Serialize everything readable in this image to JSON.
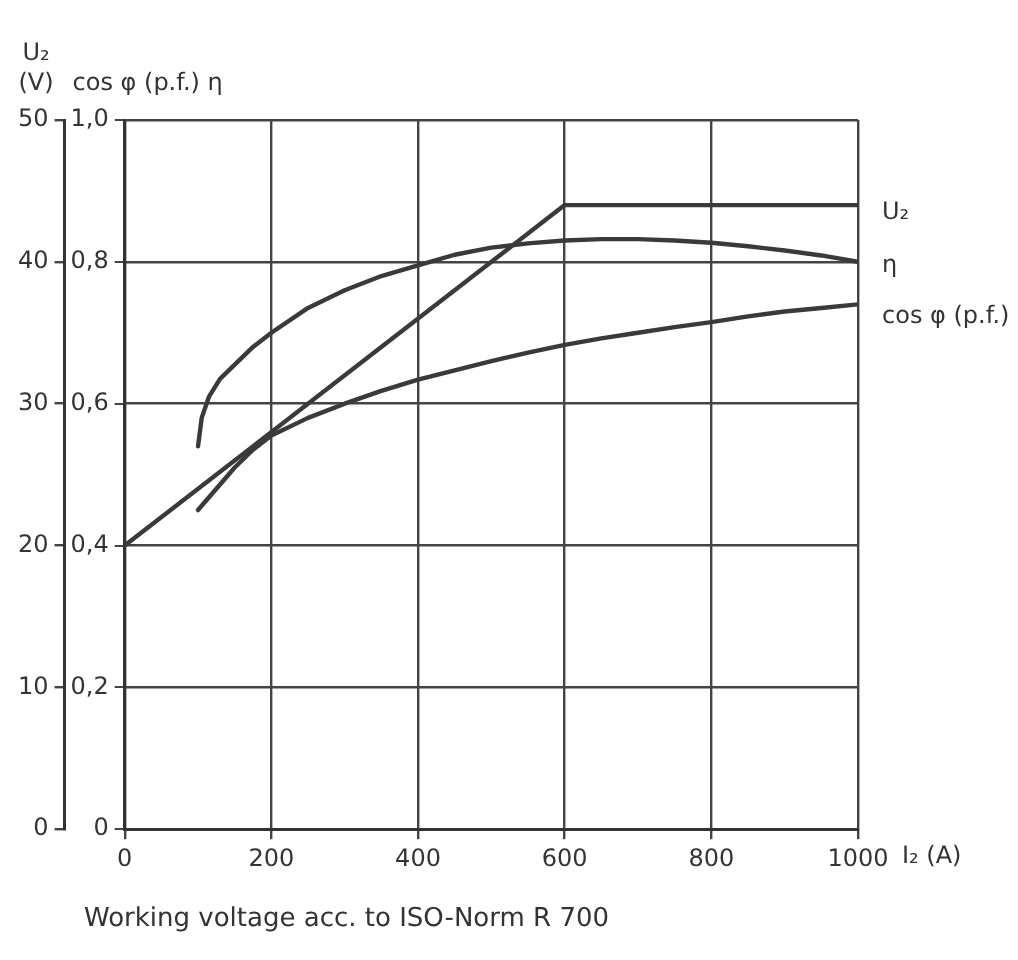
{
  "chart_data": {
    "type": "line",
    "xlabel": "I₂ (A)",
    "ylabel": "U₂ (V)",
    "y2label": "cos φ (p.f.) η",
    "xlim": [
      0,
      1000
    ],
    "xticks": [
      0,
      200,
      400,
      600,
      800,
      1000
    ],
    "ylim": [
      0,
      50
    ],
    "yticks": [
      0,
      10,
      20,
      30,
      40,
      50
    ],
    "y2lim": [
      0,
      1
    ],
    "y2ticks": [
      0,
      {
        "value": 0.2,
        "label": "0,2"
      },
      {
        "value": 0.4,
        "label": "0,4"
      },
      {
        "value": 0.6,
        "label": "0,6"
      },
      {
        "value": 0.8,
        "label": "0,8"
      },
      {
        "value": 1,
        "label": "1,0"
      }
    ],
    "grid": true,
    "legend": false,
    "marker": "none",
    "line_style": "solid",
    "series": [
      {
        "name": "U₂",
        "color": "#3a3a3a",
        "x": [
          0,
          600,
          1000
        ],
        "values": [
          20,
          44,
          44
        ]
      },
      {
        "name": "η",
        "color": "#3a3a3a",
        "axis": "y2",
        "x": [
          100,
          105,
          115,
          130,
          150,
          175,
          200,
          250,
          300,
          350,
          400,
          450,
          500,
          550,
          600,
          650,
          700,
          750,
          800,
          850,
          900,
          950,
          1000
        ],
        "values": [
          0.54,
          0.58,
          0.61,
          0.635,
          0.655,
          0.68,
          0.7,
          0.735,
          0.76,
          0.78,
          0.795,
          0.81,
          0.82,
          0.826,
          0.83,
          0.832,
          0.832,
          0.83,
          0.827,
          0.822,
          0.816,
          0.809,
          0.8
        ]
      },
      {
        "name": "cos φ (p.f.)",
        "color": "#3a3a3a",
        "axis": "y2",
        "x": [
          100,
          125,
          150,
          175,
          200,
          250,
          300,
          350,
          400,
          450,
          500,
          550,
          600,
          650,
          700,
          750,
          800,
          850,
          900,
          950,
          1000
        ],
        "values": [
          0.45,
          0.48,
          0.51,
          0.535,
          0.555,
          0.58,
          0.6,
          0.618,
          0.634,
          0.647,
          0.66,
          0.672,
          0.683,
          0.692,
          0.7,
          0.708,
          0.715,
          0.723,
          0.73,
          0.735,
          0.74
        ]
      }
    ],
    "annotations": [
      "Working voltage acc. to ISO-Norm R 700"
    ]
  }
}
